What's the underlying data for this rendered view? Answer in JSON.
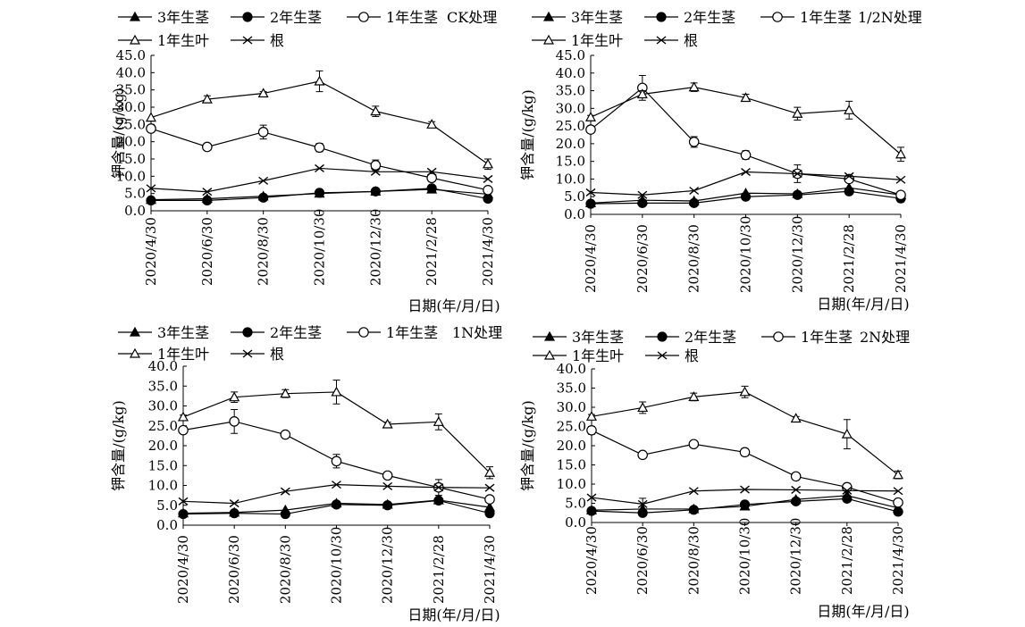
{
  "figure": {
    "x_label": "日期(年/月/日)",
    "y_label": "钾含量/(g/kg)",
    "legend_items": [
      "3年生茎",
      "2年生茎",
      "1年生茎",
      "1年生叶",
      "根"
    ],
    "colors": {
      "line": "#000000",
      "background": "#ffffff"
    }
  },
  "chart_data": [
    {
      "type": "line",
      "panel_title": "CK处理",
      "xlabel": "日期(年/月/日)",
      "ylabel": "钾含量/(g/kg)",
      "categories": [
        "2020/4/30",
        "2020/6/30",
        "2020/8/30",
        "2020/10/30",
        "2020/12/30",
        "2021/2/28",
        "2021/4/30"
      ],
      "ylim": [
        0,
        45
      ],
      "yticks": [
        "0.0",
        "5.0",
        "10.0",
        "15.0",
        "20.0",
        "25.0",
        "30.0",
        "35.0",
        "40.0",
        "45.0"
      ],
      "legend": "top",
      "grid": false,
      "series": [
        {
          "name": "3年生茎",
          "marker": "filled-triangle",
          "values": [
            3.2,
            3.5,
            4.2,
            5.0,
            5.6,
            6.2,
            4.8
          ],
          "errors": [
            0,
            0,
            0,
            0,
            0,
            0,
            0
          ]
        },
        {
          "name": "2年生茎",
          "marker": "filled-circle",
          "values": [
            3.0,
            3.0,
            3.8,
            5.2,
            5.6,
            6.5,
            3.5
          ],
          "errors": [
            0,
            0,
            0,
            0,
            0,
            0,
            0
          ]
        },
        {
          "name": "1年生茎",
          "marker": "open-circle",
          "values": [
            23.8,
            18.5,
            22.8,
            18.3,
            13.2,
            9.5,
            6.0
          ],
          "errors": [
            0.8,
            0.8,
            2.0,
            1.2,
            1.5,
            1.0,
            0.5
          ]
        },
        {
          "name": "1年生叶",
          "marker": "open-triangle",
          "values": [
            27.0,
            32.3,
            34.0,
            37.5,
            28.8,
            25.0,
            13.5
          ],
          "errors": [
            0,
            1.0,
            0.5,
            3.0,
            1.5,
            0.8,
            1.5
          ]
        },
        {
          "name": "根",
          "marker": "x",
          "values": [
            6.5,
            5.5,
            8.7,
            12.3,
            11.3,
            11.3,
            9.2
          ],
          "errors": [
            0,
            0,
            0,
            0,
            0,
            0,
            0
          ]
        }
      ]
    },
    {
      "type": "line",
      "panel_title": "1/2N处理",
      "xlabel": "日期(年/月/日)",
      "ylabel": "钾含量/(g/kg)",
      "categories": [
        "2020/4/30",
        "2020/6/30",
        "2020/8/30",
        "2020/10/30",
        "2020/12/30",
        "2021/2/28",
        "2021/4/30"
      ],
      "ylim": [
        0,
        45
      ],
      "yticks": [
        "0.0",
        "5.0",
        "10.0",
        "15.0",
        "20.0",
        "25.0",
        "30.0",
        "35.0",
        "40.0",
        "45.0"
      ],
      "legend": "top",
      "grid": false,
      "series": [
        {
          "name": "3年生茎",
          "marker": "filled-triangle",
          "values": [
            3.2,
            4.0,
            3.8,
            6.0,
            5.8,
            7.5,
            5.5
          ],
          "errors": [
            0,
            0,
            0,
            0,
            0,
            0,
            0
          ]
        },
        {
          "name": "2年生茎",
          "marker": "filled-circle",
          "values": [
            3.0,
            3.2,
            3.2,
            5.0,
            5.5,
            6.5,
            4.5
          ],
          "errors": [
            0,
            0,
            0,
            0,
            0,
            0,
            1.0
          ]
        },
        {
          "name": "1年生茎",
          "marker": "open-circle",
          "values": [
            24.0,
            35.8,
            20.5,
            16.8,
            11.5,
            10.0,
            5.5
          ],
          "errors": [
            1.0,
            3.5,
            1.5,
            1.2,
            2.5,
            1.0,
            0.8
          ]
        },
        {
          "name": "1年生叶",
          "marker": "open-triangle",
          "values": [
            27.5,
            34.0,
            36.0,
            33.0,
            28.5,
            29.5,
            17.0
          ],
          "errors": [
            0.5,
            1.0,
            1.2,
            1.0,
            1.8,
            2.5,
            2.0
          ]
        },
        {
          "name": "根",
          "marker": "x",
          "values": [
            6.2,
            5.5,
            6.7,
            12.0,
            11.5,
            10.8,
            9.8
          ],
          "errors": [
            0,
            0,
            0,
            0,
            0,
            0,
            0
          ]
        }
      ]
    },
    {
      "type": "line",
      "panel_title": "1N处理",
      "xlabel": "日期(年/月/日)",
      "ylabel": "钾含量/(g/kg)",
      "categories": [
        "2020/4/30",
        "2020/6/30",
        "2020/8/30",
        "2020/10/30",
        "2020/12/30",
        "2021/2/28",
        "2021/4/30"
      ],
      "ylim": [
        0,
        40
      ],
      "yticks": [
        "0.0",
        "5.0",
        "10.0",
        "15.0",
        "20.0",
        "25.0",
        "30.0",
        "35.0",
        "40.0"
      ],
      "legend": "top",
      "grid": false,
      "series": [
        {
          "name": "3年生茎",
          "marker": "filled-triangle",
          "values": [
            3.0,
            3.2,
            3.8,
            5.5,
            5.2,
            6.3,
            4.5
          ],
          "errors": [
            0,
            0,
            0,
            0,
            0,
            0,
            0
          ]
        },
        {
          "name": "2年生茎",
          "marker": "filled-circle",
          "values": [
            2.8,
            3.0,
            2.8,
            5.2,
            5.0,
            6.2,
            3.0
          ],
          "errors": [
            0,
            0,
            0,
            0,
            0,
            0,
            0
          ]
        },
        {
          "name": "1年生茎",
          "marker": "open-circle",
          "values": [
            23.9,
            26.1,
            22.8,
            16.1,
            12.5,
            9.5,
            6.5
          ],
          "errors": [
            0.5,
            3.0,
            0.5,
            1.7,
            0.5,
            2.0,
            0.5
          ]
        },
        {
          "name": "1年生叶",
          "marker": "open-triangle",
          "values": [
            27.2,
            32.2,
            33.1,
            33.5,
            25.4,
            26.0,
            13.2
          ],
          "errors": [
            0.5,
            1.3,
            1.0,
            3.0,
            0.5,
            2.0,
            1.5
          ]
        },
        {
          "name": "根",
          "marker": "x",
          "values": [
            6.0,
            5.5,
            8.5,
            10.2,
            9.8,
            9.5,
            9.4
          ],
          "errors": [
            0,
            0,
            0,
            0,
            0,
            0,
            0
          ]
        }
      ]
    },
    {
      "type": "line",
      "panel_title": "2N处理",
      "xlabel": "日期(年/月/日)",
      "ylabel": "钾含量/(g/kg)",
      "categories": [
        "2020/4/30",
        "2020/6/30",
        "2020/8/30",
        "2020/10/30",
        "2020/12/30",
        "2021/2/28",
        "2021/4/30"
      ],
      "ylim": [
        0,
        40
      ],
      "yticks": [
        "0.0",
        "5.0",
        "10.0",
        "15.0",
        "20.0",
        "25.0",
        "30.0",
        "35.0",
        "40.0"
      ],
      "legend": "top",
      "grid": false,
      "series": [
        {
          "name": "3年生茎",
          "marker": "filled-triangle",
          "values": [
            3.2,
            3.5,
            3.5,
            4.2,
            6.0,
            7.0,
            3.8
          ],
          "errors": [
            0,
            0,
            0,
            0,
            0,
            0,
            0
          ]
        },
        {
          "name": "2年生茎",
          "marker": "filled-circle",
          "values": [
            3.0,
            2.5,
            3.3,
            4.7,
            5.5,
            6.2,
            2.8
          ],
          "errors": [
            0,
            0,
            0,
            0,
            0,
            0,
            0
          ]
        },
        {
          "name": "1年生茎",
          "marker": "open-circle",
          "values": [
            24.0,
            17.6,
            20.4,
            18.3,
            12.0,
            9.2,
            5.2
          ],
          "errors": [
            1.0,
            0.5,
            0.5,
            1.0,
            0.5,
            1.0,
            0.5
          ]
        },
        {
          "name": "1年生叶",
          "marker": "open-triangle",
          "values": [
            27.6,
            29.9,
            32.7,
            34.0,
            27.1,
            23.0,
            12.4
          ],
          "errors": [
            0.5,
            1.5,
            1.0,
            1.5,
            0.5,
            3.8,
            1.0
          ]
        },
        {
          "name": "根",
          "marker": "x",
          "values": [
            6.5,
            4.8,
            8.2,
            8.6,
            8.5,
            8.3,
            8.2
          ],
          "errors": [
            0,
            1.5,
            0,
            0,
            0,
            0,
            0
          ]
        }
      ]
    }
  ]
}
